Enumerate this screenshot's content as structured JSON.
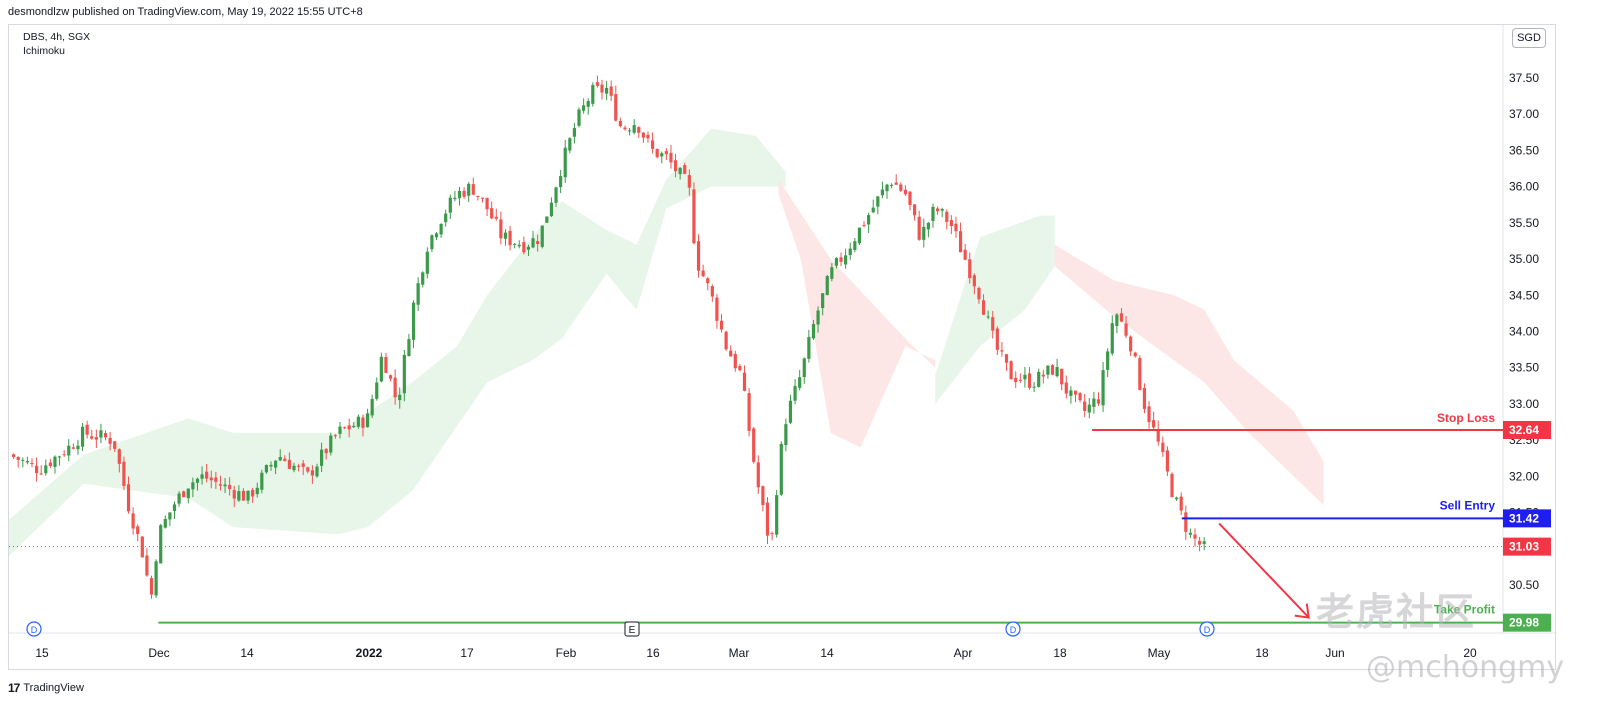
{
  "header": {
    "published": "desmondlzw published on TradingView.com, May 19, 2022 15:55 UTC+8"
  },
  "legend": {
    "symbol_line": "DBS, 4h, SGX",
    "indicator": "Ichimoku"
  },
  "currency": "SGD",
  "footer": {
    "logo": "17",
    "brand": "TradingView"
  },
  "watermark": {
    "cn": "老虎社区",
    "user": "@mchongmy"
  },
  "colors": {
    "up": "#26a69a",
    "up_candle": "#3a9a4a",
    "down": "#ef5350",
    "cloud_bull": "#e8f5e9",
    "cloud_bear": "#fde6e6",
    "stop": "#f23645",
    "entry": "#1e1ef0",
    "tp": "#4caf50",
    "last": "#f23645"
  },
  "chart_data": {
    "type": "candlestick",
    "title": "",
    "symbol": "DBS",
    "interval": "4h",
    "exchange": "SGX",
    "indicators": [
      "Ichimoku"
    ],
    "y_ticks": [
      "37.50",
      "37.00",
      "36.50",
      "36.00",
      "35.50",
      "35.00",
      "34.50",
      "34.00",
      "33.50",
      "33.00",
      "32.50",
      "32.00",
      "31.50",
      "30.50"
    ],
    "ylim": [
      30.0,
      37.9
    ],
    "x_ticks": [
      {
        "label": "15",
        "bold": false
      },
      {
        "label": "Dec",
        "bold": false
      },
      {
        "label": "14",
        "bold": false
      },
      {
        "label": "2022",
        "bold": true
      },
      {
        "label": "17",
        "bold": false
      },
      {
        "label": "Feb",
        "bold": false
      },
      {
        "label": "16",
        "bold": false
      },
      {
        "label": "Mar",
        "bold": false
      },
      {
        "label": "14",
        "bold": false
      },
      {
        "label": "Apr",
        "bold": false
      },
      {
        "label": "18",
        "bold": false
      },
      {
        "label": "May",
        "bold": false
      },
      {
        "label": "18",
        "bold": false
      },
      {
        "label": "Jun",
        "bold": false
      },
      {
        "label": "20",
        "bold": false
      }
    ],
    "close_path": [
      [
        0,
        32.3
      ],
      [
        0.02,
        32.1
      ],
      [
        0.04,
        32.4
      ],
      [
        0.05,
        32.6
      ],
      [
        0.07,
        32.5
      ],
      [
        0.08,
        31.6
      ],
      [
        0.09,
        30.9
      ],
      [
        0.095,
        30.3
      ],
      [
        0.1,
        31.2
      ],
      [
        0.11,
        31.6
      ],
      [
        0.12,
        31.9
      ],
      [
        0.13,
        32.0
      ],
      [
        0.15,
        31.8
      ],
      [
        0.16,
        31.7
      ],
      [
        0.18,
        32.3
      ],
      [
        0.2,
        32.0
      ],
      [
        0.22,
        32.6
      ],
      [
        0.24,
        32.8
      ],
      [
        0.25,
        33.7
      ],
      [
        0.26,
        33.0
      ],
      [
        0.27,
        34.3
      ],
      [
        0.28,
        35.2
      ],
      [
        0.29,
        35.6
      ],
      [
        0.3,
        35.9
      ],
      [
        0.31,
        36.0
      ],
      [
        0.32,
        35.7
      ],
      [
        0.33,
        35.3
      ],
      [
        0.345,
        35.2
      ],
      [
        0.355,
        35.3
      ],
      [
        0.37,
        36.3
      ],
      [
        0.38,
        36.9
      ],
      [
        0.39,
        37.3
      ],
      [
        0.4,
        37.35
      ],
      [
        0.41,
        36.8
      ],
      [
        0.42,
        36.9
      ],
      [
        0.43,
        36.5
      ],
      [
        0.44,
        36.4
      ],
      [
        0.455,
        36.0
      ],
      [
        0.46,
        35.0
      ],
      [
        0.47,
        34.5
      ],
      [
        0.48,
        33.8
      ],
      [
        0.49,
        33.4
      ],
      [
        0.5,
        32.0
      ],
      [
        0.51,
        31.0
      ],
      [
        0.515,
        32.1
      ],
      [
        0.52,
        32.8
      ],
      [
        0.53,
        33.4
      ],
      [
        0.54,
        34.2
      ],
      [
        0.55,
        34.8
      ],
      [
        0.56,
        35.1
      ],
      [
        0.575,
        35.6
      ],
      [
        0.59,
        36.1
      ],
      [
        0.6,
        35.9
      ],
      [
        0.61,
        35.3
      ],
      [
        0.62,
        35.7
      ],
      [
        0.63,
        35.5
      ],
      [
        0.65,
        34.5
      ],
      [
        0.66,
        33.8
      ],
      [
        0.67,
        33.4
      ],
      [
        0.685,
        33.3
      ],
      [
        0.7,
        33.5
      ],
      [
        0.71,
        33.1
      ],
      [
        0.72,
        32.9
      ],
      [
        0.73,
        33.1
      ],
      [
        0.74,
        34.3
      ],
      [
        0.75,
        33.9
      ],
      [
        0.76,
        33.0
      ],
      [
        0.77,
        32.4
      ],
      [
        0.78,
        31.7
      ],
      [
        0.79,
        31.2
      ],
      [
        0.8,
        31.0
      ]
    ],
    "series": [
      {
        "name": "Stop Loss",
        "value": 32.64,
        "label": "32.64"
      },
      {
        "name": "Sell Entry",
        "value": 31.42,
        "label": "31.42"
      },
      {
        "name": "Take Profit",
        "value": 29.98,
        "label": "29.98"
      },
      {
        "name": "Last",
        "value": 31.03,
        "label": "31.03"
      }
    ],
    "annotations": {
      "stop_label": "Stop Loss",
      "entry_label": "Sell Entry",
      "tp_label": "Take Profit",
      "event_markers": [
        "D",
        "E",
        "D",
        "D"
      ]
    },
    "grid": false
  }
}
